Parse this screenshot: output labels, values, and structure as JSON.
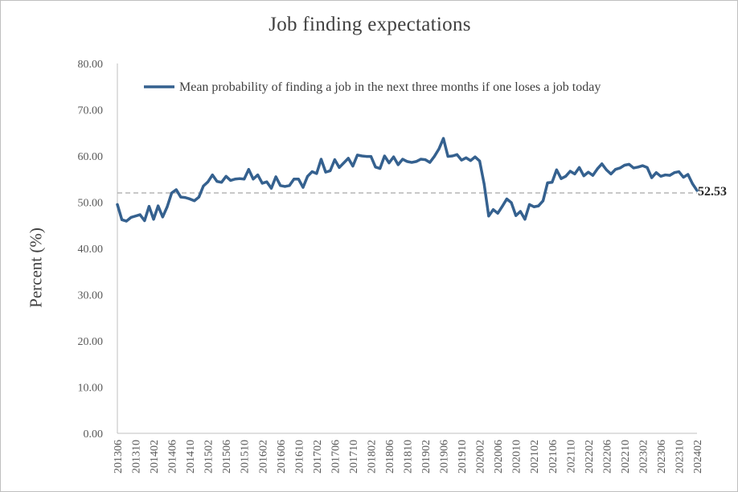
{
  "chart_data": {
    "type": "line",
    "title": "Job finding expectations",
    "ylabel": "Percent (%)",
    "xlabel": "",
    "ylim": [
      0,
      80
    ],
    "y_ticks": [
      "0.00",
      "10.00",
      "20.00",
      "30.00",
      "40.00",
      "50.00",
      "60.00",
      "70.00",
      "80.00"
    ],
    "x_tick_labels": [
      "201306",
      "201310",
      "201402",
      "201406",
      "201410",
      "201502",
      "201506",
      "201510",
      "201602",
      "201606",
      "201610",
      "201702",
      "201706",
      "201710",
      "201802",
      "201806",
      "201810",
      "201902",
      "201906",
      "201910",
      "202002",
      "202006",
      "202010",
      "202102",
      "202106",
      "202110",
      "202202",
      "202206",
      "202210",
      "202302",
      "202306",
      "202310",
      "202402"
    ],
    "grid": false,
    "legend": "top-left inside",
    "reference_line": 52.0,
    "end_label": "52.53",
    "colors": {
      "series": "#35618f",
      "reference": "#a6a6a6",
      "axis": "#bfbfbf"
    },
    "series": [
      {
        "name": "Mean probability of finding a job in the next three months if one loses a job today",
        "start": "201306",
        "values": [
          49.5,
          46.2,
          45.9,
          46.7,
          47.0,
          47.3,
          46.0,
          49.1,
          46.3,
          49.2,
          46.8,
          49.0,
          52.0,
          52.7,
          51.1,
          51.0,
          50.7,
          50.3,
          51.1,
          53.5,
          54.4,
          55.9,
          54.5,
          54.3,
          55.6,
          54.7,
          55.0,
          55.1,
          55.0,
          57.1,
          55.0,
          55.9,
          54.1,
          54.4,
          53.0,
          55.5,
          53.6,
          53.4,
          53.6,
          55.0,
          55.0,
          53.2,
          55.6,
          56.6,
          56.2,
          59.3,
          56.5,
          56.8,
          59.2,
          57.5,
          58.5,
          59.5,
          57.8,
          60.2,
          60.0,
          59.9,
          59.9,
          57.6,
          57.3,
          60.0,
          58.5,
          59.8,
          58.1,
          59.3,
          58.8,
          58.6,
          58.8,
          59.3,
          59.2,
          58.6,
          59.9,
          61.5,
          63.8,
          59.9,
          60.0,
          60.3,
          59.1,
          59.6,
          59.0,
          59.8,
          58.9,
          53.9,
          47.0,
          48.4,
          47.6,
          49.1,
          50.7,
          49.9,
          47.1,
          48.0,
          46.3,
          49.5,
          49.0,
          49.2,
          50.3,
          54.2,
          54.3,
          57.0,
          55.1,
          55.6,
          56.7,
          56.1,
          57.5,
          55.7,
          56.5,
          55.8,
          57.2,
          58.3,
          57.0,
          56.1,
          57.1,
          57.4,
          58.0,
          58.2,
          57.4,
          57.6,
          57.9,
          57.5,
          55.3,
          56.4,
          55.6,
          55.9,
          55.8,
          56.4,
          56.6,
          55.4,
          56.0,
          54.0,
          52.53
        ]
      }
    ]
  }
}
